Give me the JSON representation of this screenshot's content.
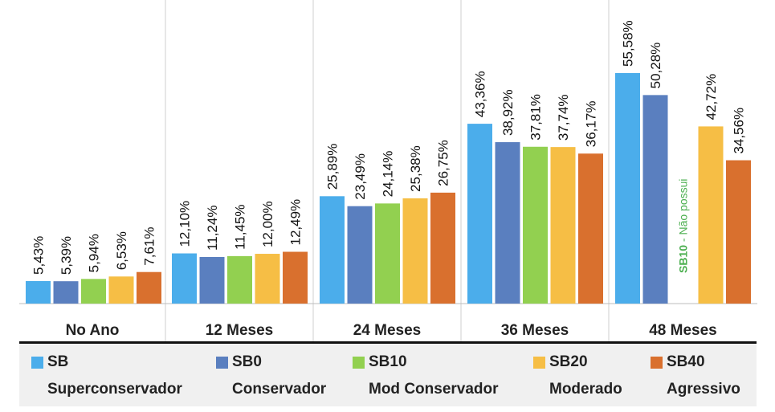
{
  "chart_data": {
    "type": "bar",
    "title": "",
    "categories": [
      "No Ano",
      "12 Meses",
      "24 Meses",
      "36 Meses",
      "48 Meses"
    ],
    "series": [
      {
        "name": "SB",
        "subtitle": "Superconservador",
        "color": "#4badeb",
        "values": [
          5.43,
          12.1,
          25.89,
          43.36,
          55.58
        ],
        "labels": [
          "5,43%",
          "12,10%",
          "25,89%",
          "43,36%",
          "55,58%"
        ]
      },
      {
        "name": "SB0",
        "subtitle": "Conservador",
        "color": "#5a7fbf",
        "values": [
          5.39,
          11.24,
          23.49,
          38.92,
          50.28
        ],
        "labels": [
          "5,39%",
          "11,24%",
          "23,49%",
          "38,92%",
          "50,28%"
        ]
      },
      {
        "name": "SB10",
        "subtitle": "Mod Conservador",
        "color": "#92d050",
        "values": [
          5.94,
          11.45,
          24.14,
          37.81,
          null
        ],
        "labels": [
          "5,94%",
          "11,45%",
          "24,14%",
          "37,81%",
          ""
        ]
      },
      {
        "name": "SB20",
        "subtitle": "Moderado",
        "color": "#f6be45",
        "values": [
          6.53,
          12.0,
          25.38,
          37.74,
          42.72
        ],
        "labels": [
          "6,53%",
          "12,00%",
          "25,38%",
          "37,74%",
          "42,72%"
        ]
      },
      {
        "name": "SB40",
        "subtitle": "Agressivo",
        "color": "#d9702e",
        "values": [
          7.61,
          12.49,
          26.75,
          36.17,
          34.56
        ],
        "labels": [
          "7,61%",
          "12,49%",
          "26,75%",
          "36,17%",
          "34,56%"
        ]
      }
    ],
    "annotations": [
      {
        "category": "48 Meses",
        "series": "SB10",
        "text_bold": "SB10",
        "text": " - Não possui"
      }
    ],
    "ylim": [
      0,
      60
    ],
    "grid": false,
    "legend": "bottom"
  }
}
